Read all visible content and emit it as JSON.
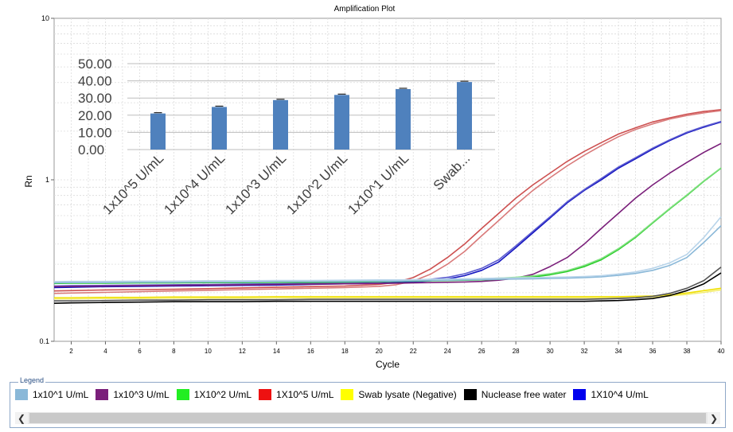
{
  "chart_data": [
    {
      "type": "line",
      "title": "Amplification Plot",
      "xlabel": "Cycle",
      "ylabel": "Rn",
      "yscale": "log",
      "xlim": [
        1,
        40
      ],
      "ylim": [
        0.1,
        10
      ],
      "x_ticks": [
        "2",
        "4",
        "6",
        "8",
        "10",
        "12",
        "14",
        "16",
        "18",
        "20",
        "22",
        "24",
        "26",
        "28",
        "30",
        "32",
        "34",
        "36",
        "38",
        "40"
      ],
      "y_ticks": [
        "0.1",
        "1",
        "10"
      ],
      "grid": true,
      "x": [
        1,
        2,
        4,
        6,
        8,
        10,
        12,
        14,
        16,
        18,
        20,
        21,
        22,
        23,
        24,
        25,
        26,
        27,
        28,
        29,
        30,
        31,
        32,
        33,
        34,
        35,
        36,
        37,
        38,
        39,
        40
      ],
      "series": [
        {
          "name": "1X10^5 U/mL",
          "color": "#cd5050",
          "values": [
            0.205,
            0.206,
            0.208,
            0.209,
            0.21,
            0.212,
            0.214,
            0.216,
            0.218,
            0.22,
            0.225,
            0.232,
            0.248,
            0.28,
            0.33,
            0.4,
            0.5,
            0.62,
            0.77,
            0.93,
            1.1,
            1.3,
            1.5,
            1.7,
            1.92,
            2.1,
            2.28,
            2.42,
            2.55,
            2.65,
            2.72
          ]
        },
        {
          "name": "1X10^5 U/mL",
          "color": "#d97a7a",
          "values": [
            0.198,
            0.199,
            0.201,
            0.203,
            0.205,
            0.207,
            0.209,
            0.211,
            0.213,
            0.215,
            0.219,
            0.224,
            0.236,
            0.26,
            0.3,
            0.36,
            0.45,
            0.56,
            0.7,
            0.86,
            1.03,
            1.22,
            1.42,
            1.63,
            1.85,
            2.05,
            2.22,
            2.38,
            2.5,
            2.6,
            2.68
          ]
        },
        {
          "name": "1X10^4 U/mL",
          "color": "#1414c0",
          "values": [
            0.215,
            0.216,
            0.218,
            0.219,
            0.22,
            0.221,
            0.222,
            0.223,
            0.225,
            0.227,
            0.229,
            0.231,
            0.233,
            0.237,
            0.243,
            0.255,
            0.275,
            0.31,
            0.38,
            0.47,
            0.58,
            0.72,
            0.86,
            1.0,
            1.18,
            1.35,
            1.55,
            1.75,
            1.95,
            2.12,
            2.28
          ]
        },
        {
          "name": "1X10^4 U/mL",
          "color": "#5a5ad0",
          "values": [
            0.22,
            0.221,
            0.222,
            0.223,
            0.224,
            0.225,
            0.226,
            0.227,
            0.229,
            0.231,
            0.233,
            0.235,
            0.238,
            0.242,
            0.249,
            0.262,
            0.283,
            0.32,
            0.39,
            0.48,
            0.59,
            0.73,
            0.87,
            1.02,
            1.2,
            1.37,
            1.57,
            1.77,
            1.97,
            2.14,
            2.3
          ]
        },
        {
          "name": "1x10^3 U/mL",
          "color": "#7a1f7a",
          "values": [
            0.218,
            0.219,
            0.22,
            0.221,
            0.222,
            0.223,
            0.224,
            0.225,
            0.226,
            0.227,
            0.228,
            0.229,
            0.23,
            0.231,
            0.232,
            0.233,
            0.235,
            0.239,
            0.246,
            0.26,
            0.29,
            0.33,
            0.4,
            0.5,
            0.62,
            0.77,
            0.93,
            1.1,
            1.28,
            1.48,
            1.68
          ]
        },
        {
          "name": "1X10^2 U/mL",
          "color": "#22cc22",
          "values": [
            0.228,
            0.229,
            0.229,
            0.23,
            0.23,
            0.231,
            0.231,
            0.232,
            0.232,
            0.233,
            0.234,
            0.235,
            0.236,
            0.237,
            0.238,
            0.239,
            0.24,
            0.242,
            0.245,
            0.25,
            0.258,
            0.27,
            0.29,
            0.32,
            0.37,
            0.44,
            0.54,
            0.66,
            0.8,
            0.98,
            1.18
          ]
        },
        {
          "name": "1X10^2 U/mL",
          "color": "#7ee07e",
          "values": [
            0.232,
            0.233,
            0.233,
            0.234,
            0.234,
            0.235,
            0.235,
            0.236,
            0.236,
            0.237,
            0.238,
            0.239,
            0.24,
            0.241,
            0.242,
            0.243,
            0.244,
            0.246,
            0.249,
            0.254,
            0.262,
            0.274,
            0.295,
            0.325,
            0.375,
            0.445,
            0.545,
            0.665,
            0.805,
            0.985,
            1.185
          ]
        },
        {
          "name": "1x10^1 U/mL",
          "color": "#8ab8d8",
          "values": [
            0.23,
            0.231,
            0.231,
            0.232,
            0.232,
            0.233,
            0.233,
            0.234,
            0.234,
            0.235,
            0.236,
            0.236,
            0.237,
            0.238,
            0.239,
            0.24,
            0.241,
            0.242,
            0.243,
            0.244,
            0.245,
            0.246,
            0.248,
            0.251,
            0.256,
            0.263,
            0.275,
            0.295,
            0.33,
            0.41,
            0.52
          ]
        },
        {
          "name": "1x10^1 U/mL",
          "color": "#b8d4ea",
          "values": [
            0.234,
            0.235,
            0.235,
            0.236,
            0.236,
            0.237,
            0.237,
            0.238,
            0.238,
            0.239,
            0.24,
            0.24,
            0.241,
            0.242,
            0.243,
            0.244,
            0.245,
            0.246,
            0.247,
            0.248,
            0.249,
            0.25,
            0.252,
            0.255,
            0.261,
            0.269,
            0.283,
            0.306,
            0.345,
            0.44,
            0.59
          ]
        },
        {
          "name": "Swab lysate (Negative)",
          "color": "#f0e000",
          "values": [
            0.186,
            0.186,
            0.187,
            0.187,
            0.188,
            0.188,
            0.188,
            0.189,
            0.189,
            0.189,
            0.189,
            0.189,
            0.189,
            0.189,
            0.189,
            0.189,
            0.189,
            0.189,
            0.189,
            0.189,
            0.189,
            0.189,
            0.189,
            0.189,
            0.189,
            0.19,
            0.191,
            0.194,
            0.199,
            0.206,
            0.213
          ]
        },
        {
          "name": "Swab lysate (Negative)",
          "color": "#f4ee70",
          "values": [
            0.183,
            0.183,
            0.184,
            0.184,
            0.185,
            0.185,
            0.185,
            0.186,
            0.186,
            0.186,
            0.186,
            0.186,
            0.186,
            0.186,
            0.186,
            0.186,
            0.186,
            0.186,
            0.186,
            0.186,
            0.186,
            0.186,
            0.186,
            0.186,
            0.186,
            0.187,
            0.188,
            0.191,
            0.195,
            0.201,
            0.208
          ]
        },
        {
          "name": "Nuclease free water",
          "color": "#000000",
          "values": [
            0.172,
            0.173,
            0.174,
            0.175,
            0.176,
            0.176,
            0.176,
            0.177,
            0.177,
            0.177,
            0.177,
            0.177,
            0.177,
            0.177,
            0.177,
            0.177,
            0.177,
            0.177,
            0.177,
            0.177,
            0.177,
            0.177,
            0.177,
            0.178,
            0.179,
            0.181,
            0.184,
            0.192,
            0.206,
            0.227,
            0.265
          ]
        },
        {
          "name": "Nuclease free water",
          "color": "#555555",
          "values": [
            0.178,
            0.178,
            0.179,
            0.18,
            0.18,
            0.181,
            0.181,
            0.181,
            0.182,
            0.182,
            0.182,
            0.182,
            0.182,
            0.182,
            0.182,
            0.182,
            0.182,
            0.182,
            0.182,
            0.182,
            0.182,
            0.182,
            0.182,
            0.183,
            0.184,
            0.186,
            0.19,
            0.198,
            0.213,
            0.238,
            0.288
          ]
        }
      ]
    },
    {
      "type": "bar",
      "categories": [
        "1x10^5 U/mL",
        "1x10^4 U/mL",
        "1x10^3 U/mL",
        "1x10^2 U/mL",
        "1x10^1 U/mL",
        "Swab..."
      ],
      "values": [
        21.0,
        24.8,
        28.8,
        31.8,
        35.2,
        39.3
      ],
      "y_ticks": [
        "0.00",
        "10.00",
        "20.00",
        "30.00",
        "40.00",
        "50.00"
      ],
      "ylim": [
        0,
        50
      ],
      "color": "#4f81bd",
      "error_bars": true,
      "grid": true
    }
  ],
  "legend": {
    "title": "Legend",
    "items": [
      {
        "label": "1x10^1 U/mL",
        "color": "#8ab8d8"
      },
      {
        "label": "1x10^3 U/mL",
        "color": "#7a1f7a"
      },
      {
        "label": "1X10^2 U/mL",
        "color": "#22ee22"
      },
      {
        "label": "1X10^5 U/mL",
        "color": "#ee1111"
      },
      {
        "label": "Swab lysate (Negative)",
        "color": "#ffff00"
      },
      {
        "label": "Nuclease free water",
        "color": "#000000"
      },
      {
        "label": "1X10^4 U/mL",
        "color": "#0000ee"
      }
    ]
  },
  "scrollbar": {
    "left_icon": "chevron-left-icon",
    "right_icon": "chevron-right-icon"
  }
}
